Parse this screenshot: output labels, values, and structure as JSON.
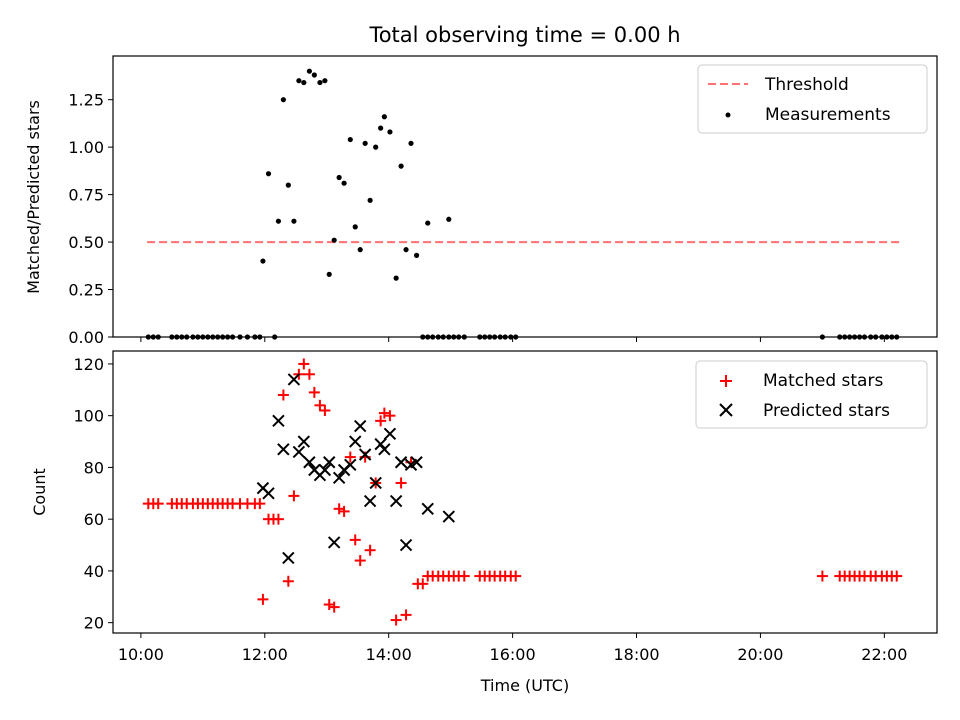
{
  "chart_data": [
    {
      "type": "scatter",
      "title": "Total observing time = 0.00 h",
      "ylabel": "Matched/Predicted stars",
      "xlabel": "",
      "xlim": [
        9.55,
        22.85
      ],
      "ylim": [
        0,
        1.48
      ],
      "y_ticks": [
        0.0,
        0.25,
        0.5,
        0.75,
        1.0,
        1.25
      ],
      "y_tick_labels": [
        "0.00",
        "0.25",
        "0.50",
        "0.75",
        "1.00",
        "1.25"
      ],
      "x_ticks": [
        10,
        12,
        14,
        16,
        18,
        20,
        22
      ],
      "legend": {
        "placement": "top-right",
        "entries": [
          "Threshold",
          "Measurements"
        ]
      },
      "threshold": {
        "name": "Threshold",
        "y": 0.5,
        "x_range": [
          10.1,
          22.25
        ],
        "color": "#ff7070"
      },
      "series": [
        {
          "name": "Measurements",
          "color": "#000000",
          "points": [
            [
              10.12,
              0
            ],
            [
              10.2,
              0
            ],
            [
              10.28,
              0
            ],
            [
              10.5,
              0
            ],
            [
              10.58,
              0
            ],
            [
              10.66,
              0
            ],
            [
              10.74,
              0
            ],
            [
              10.84,
              0
            ],
            [
              10.92,
              0
            ],
            [
              11.0,
              0
            ],
            [
              11.08,
              0
            ],
            [
              11.16,
              0
            ],
            [
              11.24,
              0
            ],
            [
              11.32,
              0
            ],
            [
              11.4,
              0
            ],
            [
              11.48,
              0
            ],
            [
              11.6,
              0
            ],
            [
              11.72,
              0
            ],
            [
              11.84,
              0
            ],
            [
              11.92,
              0
            ],
            [
              12.16,
              0
            ],
            [
              11.97,
              0.4
            ],
            [
              12.06,
              0.86
            ],
            [
              12.22,
              0.61
            ],
            [
              12.3,
              1.25
            ],
            [
              12.38,
              0.8
            ],
            [
              12.47,
              0.61
            ],
            [
              12.55,
              1.35
            ],
            [
              12.63,
              1.34
            ],
            [
              12.72,
              1.4
            ],
            [
              12.8,
              1.38
            ],
            [
              12.89,
              1.34
            ],
            [
              12.97,
              1.35
            ],
            [
              13.04,
              0.33
            ],
            [
              13.12,
              0.51
            ],
            [
              13.2,
              0.84
            ],
            [
              13.28,
              0.81
            ],
            [
              13.38,
              1.04
            ],
            [
              13.46,
              0.58
            ],
            [
              13.54,
              0.46
            ],
            [
              13.62,
              1.02
            ],
            [
              13.7,
              0.72
            ],
            [
              13.79,
              1.0
            ],
            [
              13.87,
              1.1
            ],
            [
              13.93,
              1.16
            ],
            [
              14.02,
              1.08
            ],
            [
              14.12,
              0.31
            ],
            [
              14.2,
              0.9
            ],
            [
              14.28,
              0.46
            ],
            [
              14.36,
              1.02
            ],
            [
              14.45,
              0.43
            ],
            [
              14.63,
              0.6
            ],
            [
              14.97,
              0.62
            ],
            [
              14.55,
              0
            ],
            [
              14.63,
              0
            ],
            [
              14.71,
              0
            ],
            [
              14.8,
              0
            ],
            [
              14.88,
              0
            ],
            [
              14.97,
              0
            ],
            [
              15.05,
              0
            ],
            [
              15.13,
              0
            ],
            [
              15.22,
              0
            ],
            [
              15.47,
              0
            ],
            [
              15.55,
              0
            ],
            [
              15.63,
              0
            ],
            [
              15.71,
              0
            ],
            [
              15.8,
              0
            ],
            [
              15.88,
              0
            ],
            [
              15.97,
              0
            ],
            [
              16.05,
              0
            ],
            [
              21.0,
              0
            ],
            [
              21.28,
              0
            ],
            [
              21.36,
              0
            ],
            [
              21.44,
              0
            ],
            [
              21.52,
              0
            ],
            [
              21.6,
              0
            ],
            [
              21.68,
              0
            ],
            [
              21.78,
              0
            ],
            [
              21.86,
              0
            ],
            [
              21.96,
              0
            ],
            [
              22.04,
              0
            ],
            [
              22.12,
              0
            ],
            [
              22.2,
              0
            ]
          ]
        }
      ]
    },
    {
      "type": "scatter",
      "title": "",
      "ylabel": "Count",
      "xlabel": "Time (UTC)",
      "xlim": [
        9.55,
        22.85
      ],
      "ylim": [
        16,
        125
      ],
      "y_ticks": [
        20,
        40,
        60,
        80,
        100,
        120
      ],
      "x_ticks": [
        10,
        12,
        14,
        16,
        18,
        20,
        22
      ],
      "x_tick_labels": [
        "10:00",
        "12:00",
        "14:00",
        "16:00",
        "18:00",
        "20:00",
        "22:00"
      ],
      "legend": {
        "placement": "top-right",
        "entries": [
          "Matched stars",
          "Predicted stars"
        ]
      },
      "series": [
        {
          "name": "Matched stars",
          "marker": "+",
          "color": "#ff0000",
          "points": [
            [
              10.12,
              66
            ],
            [
              10.2,
              66
            ],
            [
              10.28,
              66
            ],
            [
              10.5,
              66
            ],
            [
              10.58,
              66
            ],
            [
              10.66,
              66
            ],
            [
              10.74,
              66
            ],
            [
              10.84,
              66
            ],
            [
              10.92,
              66
            ],
            [
              11.0,
              66
            ],
            [
              11.08,
              66
            ],
            [
              11.16,
              66
            ],
            [
              11.24,
              66
            ],
            [
              11.32,
              66
            ],
            [
              11.4,
              66
            ],
            [
              11.48,
              66
            ],
            [
              11.6,
              66
            ],
            [
              11.72,
              66
            ],
            [
              11.84,
              66
            ],
            [
              11.92,
              66
            ],
            [
              11.97,
              29
            ],
            [
              12.06,
              60
            ],
            [
              12.14,
              60
            ],
            [
              12.22,
              60
            ],
            [
              12.3,
              108
            ],
            [
              12.38,
              36
            ],
            [
              12.47,
              69
            ],
            [
              12.55,
              116
            ],
            [
              12.63,
              120
            ],
            [
              12.72,
              116
            ],
            [
              12.8,
              109
            ],
            [
              12.89,
              104
            ],
            [
              12.97,
              102
            ],
            [
              13.04,
              27
            ],
            [
              13.12,
              26
            ],
            [
              13.2,
              64
            ],
            [
              13.28,
              63
            ],
            [
              13.38,
              84
            ],
            [
              13.46,
              52
            ],
            [
              13.54,
              44
            ],
            [
              13.62,
              84
            ],
            [
              13.7,
              48
            ],
            [
              13.79,
              74
            ],
            [
              13.87,
              98
            ],
            [
              13.93,
              101
            ],
            [
              14.02,
              100
            ],
            [
              14.12,
              21
            ],
            [
              14.2,
              74
            ],
            [
              14.28,
              23
            ],
            [
              14.36,
              82
            ],
            [
              14.47,
              35
            ],
            [
              14.55,
              35
            ],
            [
              14.63,
              38
            ],
            [
              14.71,
              38
            ],
            [
              14.8,
              38
            ],
            [
              14.88,
              38
            ],
            [
              14.97,
              38
            ],
            [
              15.05,
              38
            ],
            [
              15.13,
              38
            ],
            [
              15.22,
              38
            ],
            [
              15.47,
              38
            ],
            [
              15.55,
              38
            ],
            [
              15.63,
              38
            ],
            [
              15.71,
              38
            ],
            [
              15.8,
              38
            ],
            [
              15.88,
              38
            ],
            [
              15.97,
              38
            ],
            [
              16.05,
              38
            ],
            [
              21.0,
              38
            ],
            [
              21.28,
              38
            ],
            [
              21.36,
              38
            ],
            [
              21.44,
              38
            ],
            [
              21.52,
              38
            ],
            [
              21.6,
              38
            ],
            [
              21.68,
              38
            ],
            [
              21.78,
              38
            ],
            [
              21.86,
              38
            ],
            [
              21.96,
              38
            ],
            [
              22.04,
              38
            ],
            [
              22.12,
              38
            ],
            [
              22.2,
              38
            ]
          ]
        },
        {
          "name": "Predicted stars",
          "marker": "x",
          "color": "#000000",
          "points": [
            [
              11.97,
              72
            ],
            [
              12.06,
              70
            ],
            [
              12.22,
              98
            ],
            [
              12.3,
              87
            ],
            [
              12.38,
              45
            ],
            [
              12.47,
              114
            ],
            [
              12.55,
              86
            ],
            [
              12.63,
              90
            ],
            [
              12.72,
              82
            ],
            [
              12.8,
              79
            ],
            [
              12.89,
              77
            ],
            [
              12.97,
              79
            ],
            [
              13.04,
              82
            ],
            [
              13.12,
              51
            ],
            [
              13.2,
              76
            ],
            [
              13.28,
              79
            ],
            [
              13.38,
              81
            ],
            [
              13.46,
              90
            ],
            [
              13.54,
              96
            ],
            [
              13.62,
              85
            ],
            [
              13.7,
              67
            ],
            [
              13.79,
              74
            ],
            [
              13.87,
              89
            ],
            [
              13.93,
              87
            ],
            [
              14.02,
              93
            ],
            [
              14.12,
              67
            ],
            [
              14.2,
              82
            ],
            [
              14.28,
              50
            ],
            [
              14.36,
              81
            ],
            [
              14.45,
              82
            ],
            [
              14.63,
              64
            ],
            [
              14.97,
              61
            ]
          ]
        }
      ]
    }
  ]
}
